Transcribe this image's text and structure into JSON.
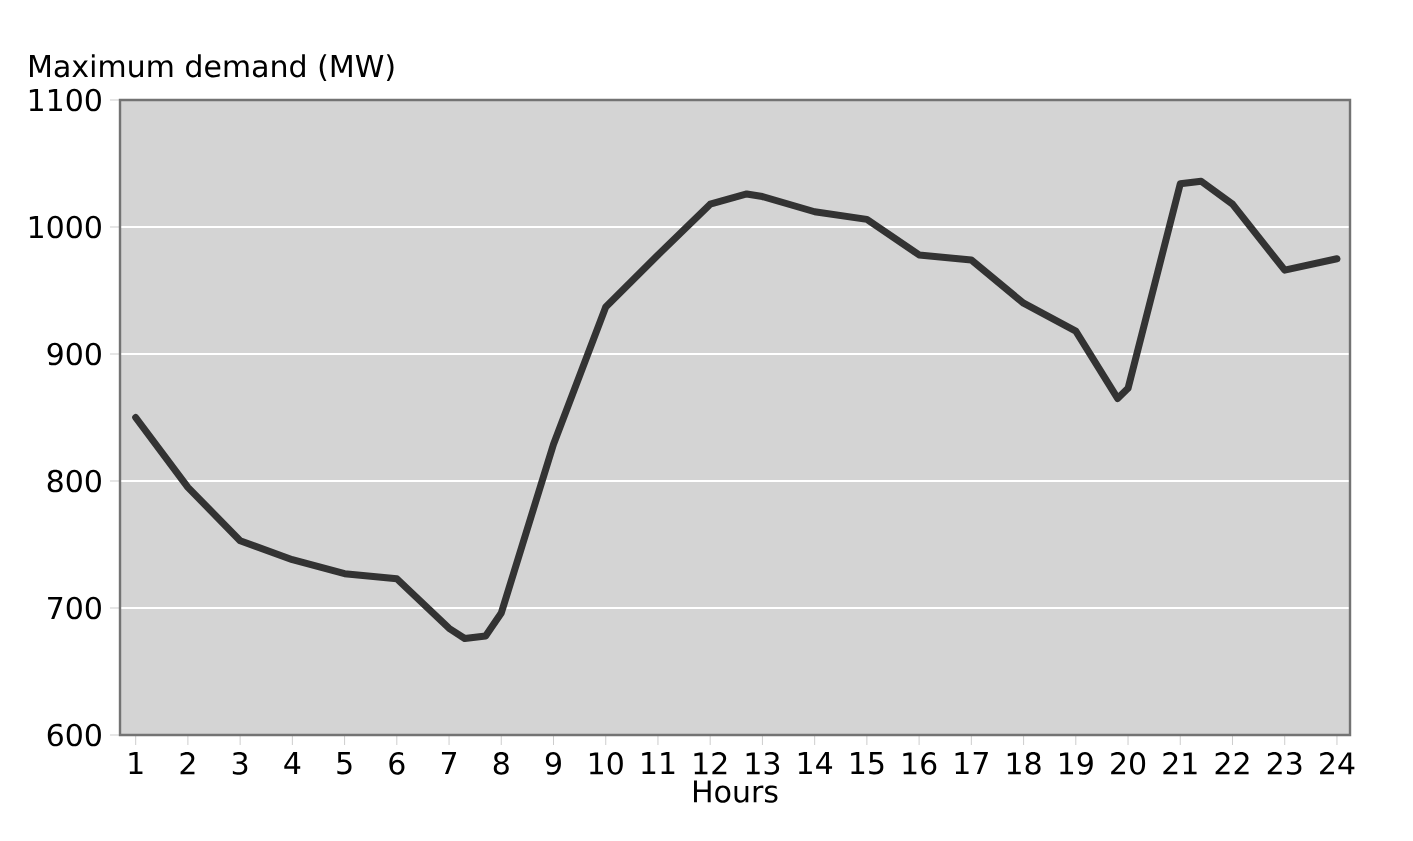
{
  "chart_data": {
    "type": "line",
    "xlabel": "Hours",
    "ylabel": "Maximum demand (MW)",
    "x": [
      1,
      2,
      3,
      4,
      5,
      6,
      7,
      7.3,
      7.7,
      8,
      9,
      10,
      11,
      12,
      12.7,
      13,
      14,
      15,
      16,
      17,
      18,
      19,
      19.8,
      20,
      21,
      21.4,
      22,
      23,
      24
    ],
    "values": [
      850,
      795,
      753,
      738,
      727,
      723,
      684,
      676,
      678,
      696,
      829,
      937,
      978,
      1018,
      1026,
      1024,
      1012,
      1006,
      978,
      974,
      940,
      918,
      865,
      873,
      1034,
      1036,
      1018,
      966,
      975
    ],
    "color": "#333333",
    "xlim": [
      0.7,
      24.25
    ],
    "ylim": [
      600,
      1100
    ],
    "xticks": [
      1,
      2,
      3,
      4,
      5,
      6,
      7,
      8,
      9,
      10,
      11,
      12,
      13,
      14,
      15,
      16,
      17,
      18,
      19,
      20,
      21,
      22,
      23,
      24
    ],
    "yticks": [
      600,
      700,
      800,
      900,
      1000,
      1100
    ],
    "grid": "y"
  }
}
